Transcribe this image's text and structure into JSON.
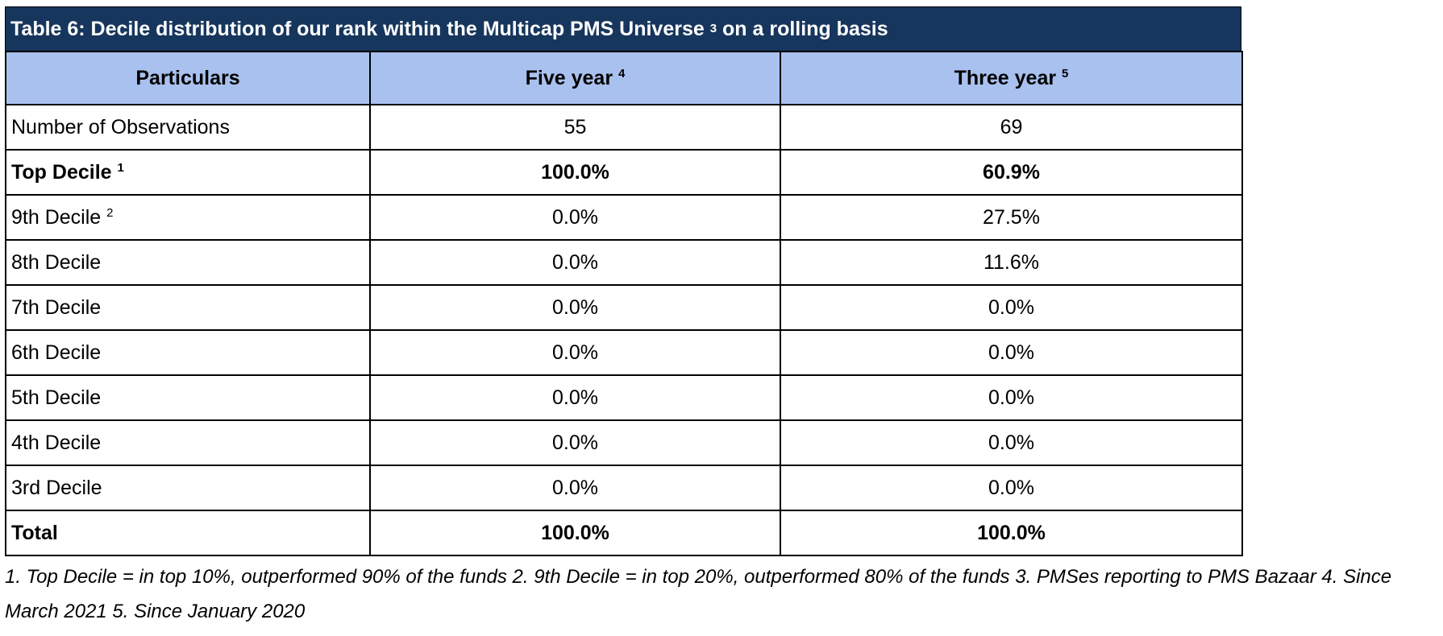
{
  "title": {
    "text": "Table 6: Decile distribution of our rank within the Multicap PMS Universe",
    "sup": "3",
    "suffix": " on a rolling basis"
  },
  "columns": [
    {
      "label": "Particulars",
      "sup": ""
    },
    {
      "label": "Five year",
      "sup": "4"
    },
    {
      "label": "Three year",
      "sup": "5"
    }
  ],
  "rows": [
    {
      "label": "Number of Observations",
      "sup": "",
      "five_year": "55",
      "three_year": "69",
      "bold": false
    },
    {
      "label": "Top Decile",
      "sup": "1",
      "five_year": "100.0%",
      "three_year": "60.9%",
      "bold": true
    },
    {
      "label": "9th Decile",
      "sup": "2",
      "five_year": "0.0%",
      "three_year": "27.5%",
      "bold": false
    },
    {
      "label": "8th Decile",
      "sup": "",
      "five_year": "0.0%",
      "three_year": "11.6%",
      "bold": false
    },
    {
      "label": "7th Decile",
      "sup": "",
      "five_year": "0.0%",
      "three_year": "0.0%",
      "bold": false
    },
    {
      "label": "6th Decile",
      "sup": "",
      "five_year": "0.0%",
      "three_year": "0.0%",
      "bold": false
    },
    {
      "label": "5th Decile",
      "sup": "",
      "five_year": "0.0%",
      "three_year": "0.0%",
      "bold": false
    },
    {
      "label": "4th Decile",
      "sup": "",
      "five_year": "0.0%",
      "three_year": "0.0%",
      "bold": false
    },
    {
      "label": "3rd Decile",
      "sup": "",
      "five_year": "0.0%",
      "three_year": "0.0%",
      "bold": false
    },
    {
      "label": "Total",
      "sup": "",
      "five_year": "100.0%",
      "three_year": "100.0%",
      "bold": true
    }
  ],
  "footnote": "1. Top Decile = in top 10%, outperformed 90% of the funds 2. 9th Decile = in top 20%, outperformed 80% of the funds 3. PMSes reporting to PMS Bazaar 4. Since March 2021 5. Since January 2020",
  "colors": {
    "title_bg": "#17365d",
    "header_bg": "#a9c1ee"
  }
}
